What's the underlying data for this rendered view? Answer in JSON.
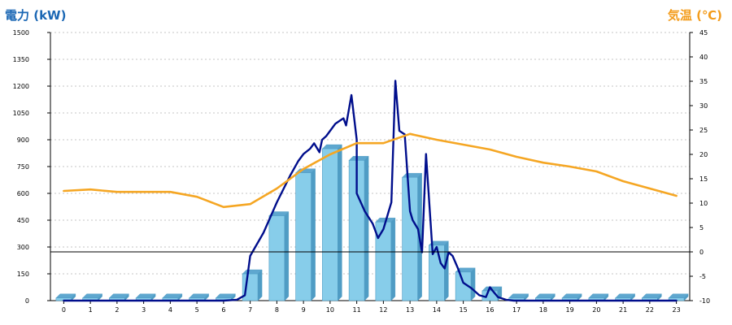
{
  "chart_data": {
    "type": "bar",
    "ylabel_left": "電力 (kW)",
    "ylabel_right": "気温 (℃)",
    "categories": [
      "0",
      "1",
      "2",
      "3",
      "4",
      "5",
      "6",
      "7",
      "8",
      "9",
      "10",
      "11",
      "12",
      "13",
      "14",
      "15",
      "16",
      "17",
      "18",
      "19",
      "20",
      "21",
      "22",
      "23"
    ],
    "y_left": {
      "min": 0,
      "max": 1500,
      "ticks": [
        0,
        150,
        300,
        450,
        600,
        750,
        900,
        1050,
        1200,
        1350,
        1500
      ]
    },
    "y_right": {
      "min": -10,
      "max": 45,
      "ticks": [
        -10,
        -5,
        0,
        5,
        10,
        15,
        20,
        25,
        30,
        35,
        40,
        45
      ]
    },
    "grid": true,
    "series": [
      {
        "kind": "bar",
        "axis": "left",
        "values": [
          15,
          15,
          15,
          15,
          15,
          15,
          15,
          150,
          475,
          715,
          850,
          785,
          440,
          690,
          310,
          160,
          55,
          15,
          15,
          15,
          15,
          15,
          15,
          15
        ],
        "color": "#87cdea",
        "edge_color": "#4f9cc4"
      },
      {
        "kind": "line",
        "axis": "left",
        "color": "#000e8c",
        "points": [
          [
            0,
            0
          ],
          [
            1,
            0
          ],
          [
            2,
            0
          ],
          [
            3,
            0
          ],
          [
            4,
            0
          ],
          [
            5,
            0
          ],
          [
            6,
            0
          ],
          [
            6.5,
            5
          ],
          [
            6.8,
            30
          ],
          [
            7,
            250
          ],
          [
            7.5,
            380
          ],
          [
            8,
            550
          ],
          [
            8.5,
            700
          ],
          [
            8.8,
            780
          ],
          [
            9,
            820
          ],
          [
            9.25,
            850
          ],
          [
            9.4,
            880
          ],
          [
            9.6,
            830
          ],
          [
            9.7,
            900
          ],
          [
            9.85,
            920
          ],
          [
            10,
            950
          ],
          [
            10.2,
            990
          ],
          [
            10.4,
            1010
          ],
          [
            10.5,
            1020
          ],
          [
            10.6,
            980
          ],
          [
            10.8,
            1150
          ],
          [
            11,
            900
          ],
          [
            11,
            600
          ],
          [
            11.3,
            500
          ],
          [
            11.6,
            430
          ],
          [
            11.8,
            350
          ],
          [
            12,
            400
          ],
          [
            12.3,
            550
          ],
          [
            12.45,
            1230
          ],
          [
            12.6,
            950
          ],
          [
            12.8,
            930
          ],
          [
            13,
            500
          ],
          [
            13.1,
            450
          ],
          [
            13.3,
            400
          ],
          [
            13.45,
            270
          ],
          [
            13.6,
            820
          ],
          [
            13.85,
            260
          ],
          [
            14,
            300
          ],
          [
            14.15,
            210
          ],
          [
            14.3,
            180
          ],
          [
            14.45,
            270
          ],
          [
            14.6,
            250
          ],
          [
            14.8,
            180
          ],
          [
            15,
            100
          ],
          [
            15.3,
            70
          ],
          [
            15.6,
            30
          ],
          [
            15.85,
            20
          ],
          [
            16,
            75
          ],
          [
            16.1,
            55
          ],
          [
            16.3,
            20
          ],
          [
            16.6,
            5
          ],
          [
            16.9,
            0
          ],
          [
            18,
            0
          ],
          [
            19,
            0
          ],
          [
            20,
            0
          ],
          [
            21,
            0
          ],
          [
            22,
            0
          ],
          [
            23,
            0
          ]
        ]
      },
      {
        "kind": "line",
        "axis": "right",
        "color": "#f5a623",
        "points": [
          [
            0,
            12.5
          ],
          [
            1,
            12.8
          ],
          [
            2,
            12.3
          ],
          [
            3,
            12.3
          ],
          [
            4,
            12.3
          ],
          [
            5,
            11.3
          ],
          [
            6,
            9.2
          ],
          [
            7,
            9.8
          ],
          [
            8,
            13
          ],
          [
            9,
            17
          ],
          [
            10,
            20
          ],
          [
            11,
            22.3
          ],
          [
            12,
            22.3
          ],
          [
            13,
            24.2
          ],
          [
            14,
            23
          ],
          [
            15,
            22
          ],
          [
            16,
            21
          ],
          [
            17,
            19.5
          ],
          [
            18,
            18.3
          ],
          [
            19,
            17.5
          ],
          [
            20,
            16.5
          ],
          [
            21,
            14.5
          ],
          [
            22,
            13
          ],
          [
            23,
            11.5
          ]
        ]
      }
    ],
    "reference_line": {
      "axis": "right",
      "value": 0,
      "color": "#000000"
    }
  }
}
